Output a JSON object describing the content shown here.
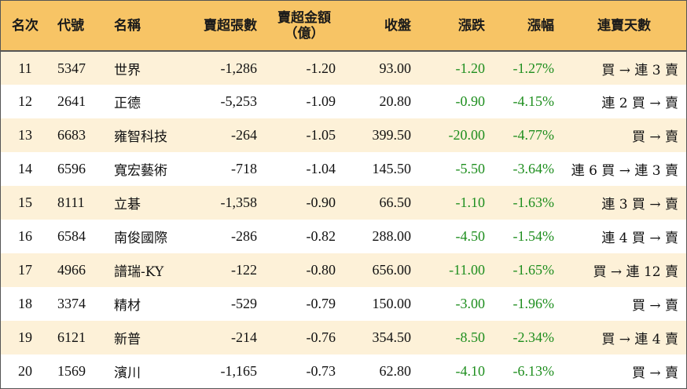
{
  "header": {
    "rank": "名次",
    "code": "代號",
    "name": "名稱",
    "net_sell_lots": "賣超張數",
    "net_sell_amount_line1": "賣超金額",
    "net_sell_amount_line2": "（億）",
    "close": "收盤",
    "change": "漲跌",
    "change_pct": "漲幅",
    "streak": "連賣天數"
  },
  "colors": {
    "header_bg": "#f7c465",
    "row_alt_bg": "#fdf1d8",
    "negative_text": "#1e8e1e"
  },
  "rows": [
    {
      "rank": "11",
      "code": "5347",
      "name": "世界",
      "lots": "-1,286",
      "amount": "-1.20",
      "close": "93.00",
      "change": "-1.20",
      "pct": "-1.27%",
      "streak": "買 → 連 3 賣"
    },
    {
      "rank": "12",
      "code": "2641",
      "name": "正德",
      "lots": "-5,253",
      "amount": "-1.09",
      "close": "20.80",
      "change": "-0.90",
      "pct": "-4.15%",
      "streak": "連 2 買 → 賣"
    },
    {
      "rank": "13",
      "code": "6683",
      "name": "雍智科技",
      "lots": "-264",
      "amount": "-1.05",
      "close": "399.50",
      "change": "-20.00",
      "pct": "-4.77%",
      "streak": "買 → 賣"
    },
    {
      "rank": "14",
      "code": "6596",
      "name": "寬宏藝術",
      "lots": "-718",
      "amount": "-1.04",
      "close": "145.50",
      "change": "-5.50",
      "pct": "-3.64%",
      "streak": "連 6 買 → 連 3 賣"
    },
    {
      "rank": "15",
      "code": "8111",
      "name": "立碁",
      "lots": "-1,358",
      "amount": "-0.90",
      "close": "66.50",
      "change": "-1.10",
      "pct": "-1.63%",
      "streak": "連 3 買 → 賣"
    },
    {
      "rank": "16",
      "code": "6584",
      "name": "南俊國際",
      "lots": "-286",
      "amount": "-0.82",
      "close": "288.00",
      "change": "-4.50",
      "pct": "-1.54%",
      "streak": "連 4 買 → 賣"
    },
    {
      "rank": "17",
      "code": "4966",
      "name": "譜瑞-KY",
      "lots": "-122",
      "amount": "-0.80",
      "close": "656.00",
      "change": "-11.00",
      "pct": "-1.65%",
      "streak": "買 → 連 12 賣"
    },
    {
      "rank": "18",
      "code": "3374",
      "name": "精材",
      "lots": "-529",
      "amount": "-0.79",
      "close": "150.00",
      "change": "-3.00",
      "pct": "-1.96%",
      "streak": "買 → 賣"
    },
    {
      "rank": "19",
      "code": "6121",
      "name": "新普",
      "lots": "-214",
      "amount": "-0.76",
      "close": "354.50",
      "change": "-8.50",
      "pct": "-2.34%",
      "streak": "買 → 連 4 賣"
    },
    {
      "rank": "20",
      "code": "1569",
      "name": "濱川",
      "lots": "-1,165",
      "amount": "-0.73",
      "close": "62.80",
      "change": "-4.10",
      "pct": "-6.13%",
      "streak": "買 → 賣"
    }
  ]
}
